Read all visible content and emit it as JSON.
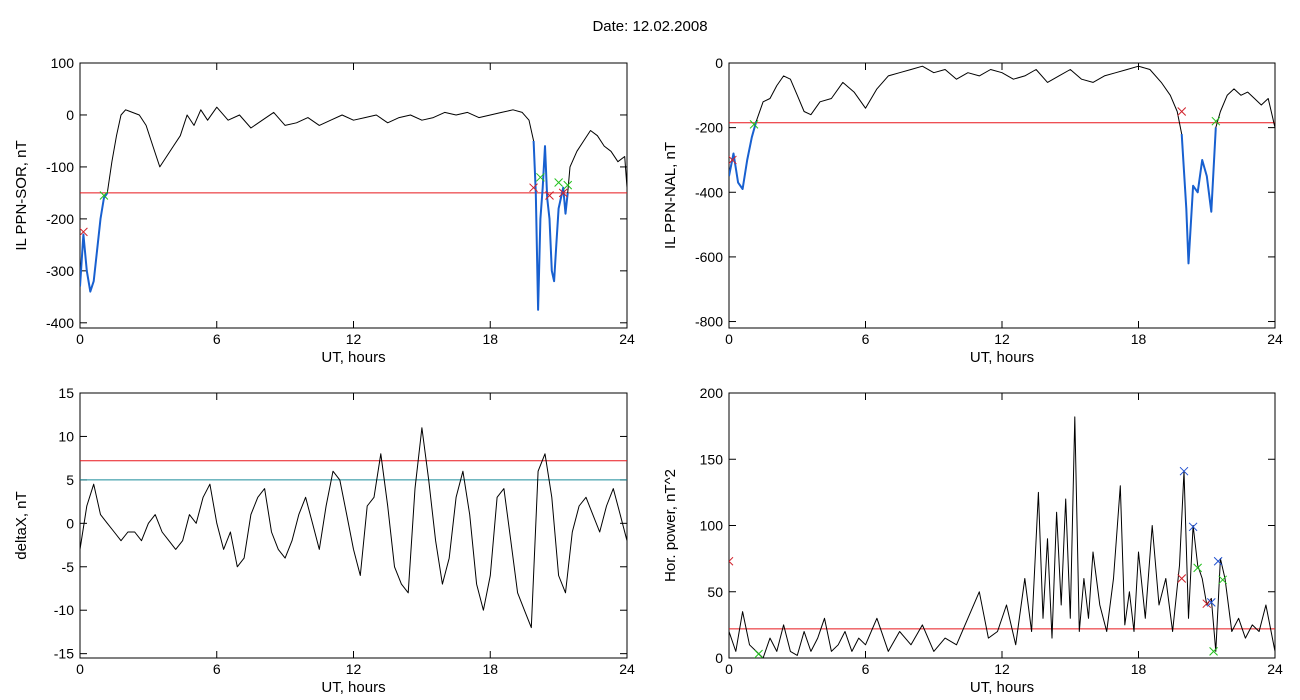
{
  "figure": {
    "title_label": "Date:",
    "title_value": "12.02.2008",
    "title_text": "Date:  12.02.2008"
  },
  "colors": {
    "signal": "#000000",
    "threshold_red": "#e8161b",
    "threshold_cyan": "#1a8c9a",
    "highlight_blue": "#1860d0",
    "marker_red": "#d0202a",
    "marker_green": "#22c01c",
    "marker_blue": "#2050d0"
  },
  "chart_data": [
    {
      "id": "sor",
      "type": "line",
      "title": "",
      "xlabel": "UT, hours",
      "ylabel": "IL PPN-SOR, nT",
      "xlim": [
        0,
        24
      ],
      "ylim": [
        -410,
        100
      ],
      "xticks": [
        0,
        6,
        12,
        18,
        24
      ],
      "yticks": [
        100,
        0,
        -100,
        -200,
        -300,
        -400
      ],
      "threshold": -150,
      "series": [
        {
          "role": "signal",
          "x": [
            0,
            0.15,
            0.3,
            0.45,
            0.6,
            0.75,
            0.9,
            1.05,
            1.2,
            1.4,
            1.6,
            1.8,
            2.0,
            2.3,
            2.6,
            2.9,
            3.2,
            3.5,
            3.8,
            4.1,
            4.4,
            4.7,
            5.0,
            5.3,
            5.6,
            6.0,
            6.5,
            7.0,
            7.5,
            8.0,
            8.5,
            9.0,
            9.5,
            10.0,
            10.5,
            11.0,
            11.5,
            12.0,
            12.5,
            13.0,
            13.5,
            14.0,
            14.5,
            15.0,
            15.5,
            16.0,
            16.5,
            17.0,
            17.5,
            18.0,
            18.5,
            19.0,
            19.4,
            19.7,
            19.9,
            20.0,
            20.1,
            20.2,
            20.3,
            20.4,
            20.5,
            20.6,
            20.7,
            20.8,
            20.9,
            21.0,
            21.1,
            21.2,
            21.3,
            21.4,
            21.5,
            21.8,
            22.1,
            22.4,
            22.7,
            23.0,
            23.3,
            23.6,
            23.9,
            24.0
          ],
          "y": [
            -330,
            -230,
            -300,
            -340,
            -320,
            -260,
            -200,
            -160,
            -150,
            -90,
            -40,
            0,
            10,
            5,
            0,
            -20,
            -60,
            -100,
            -80,
            -60,
            -40,
            0,
            -20,
            10,
            -10,
            15,
            -10,
            0,
            -25,
            -10,
            5,
            -20,
            -15,
            -5,
            -20,
            -10,
            0,
            -10,
            -5,
            0,
            -15,
            -5,
            0,
            -10,
            -5,
            5,
            0,
            5,
            -5,
            0,
            5,
            10,
            5,
            -10,
            -50,
            -150,
            -375,
            -200,
            -140,
            -60,
            -160,
            -200,
            -300,
            -320,
            -250,
            -180,
            -160,
            -140,
            -190,
            -150,
            -100,
            -70,
            -50,
            -30,
            -40,
            -60,
            -70,
            -90,
            -80,
            -140
          ]
        },
        {
          "role": "highlight",
          "x": [
            0,
            0.15,
            0.3,
            0.45,
            0.6,
            0.75,
            0.9,
            1.05,
            1.2
          ],
          "y": [
            -330,
            -230,
            -300,
            -340,
            -320,
            -260,
            -200,
            -160,
            -150
          ]
        },
        {
          "role": "highlight",
          "x": [
            19.9,
            20.0,
            20.1,
            20.2,
            20.3,
            20.4,
            20.5,
            20.6,
            20.7,
            20.8,
            20.9,
            21.0,
            21.1,
            21.2,
            21.3,
            21.4
          ],
          "y": [
            -50,
            -150,
            -375,
            -200,
            -140,
            -60,
            -160,
            -200,
            -300,
            -320,
            -250,
            -180,
            -160,
            -140,
            -190,
            -150
          ]
        }
      ],
      "markers": [
        {
          "x": 0.15,
          "y": -225,
          "color": "red"
        },
        {
          "x": 1.05,
          "y": -155,
          "color": "green"
        },
        {
          "x": 19.9,
          "y": -140,
          "color": "red"
        },
        {
          "x": 20.2,
          "y": -120,
          "color": "green"
        },
        {
          "x": 20.6,
          "y": -155,
          "color": "red"
        },
        {
          "x": 21.0,
          "y": -130,
          "color": "green"
        },
        {
          "x": 21.2,
          "y": -150,
          "color": "red"
        },
        {
          "x": 21.4,
          "y": -135,
          "color": "green"
        }
      ]
    },
    {
      "id": "nal",
      "type": "line",
      "title": "",
      "xlabel": "UT, hours",
      "ylabel": "IL PPN-NAL, nT",
      "xlim": [
        0,
        24
      ],
      "ylim": [
        -820,
        0
      ],
      "xticks": [
        0,
        6,
        12,
        18,
        24
      ],
      "yticks": [
        0,
        -200,
        -400,
        -600,
        -800
      ],
      "threshold": -185,
      "series": [
        {
          "role": "signal",
          "x": [
            0,
            0.2,
            0.4,
            0.6,
            0.8,
            1.0,
            1.2,
            1.5,
            1.8,
            2.1,
            2.4,
            2.7,
            3.0,
            3.3,
            3.6,
            4.0,
            4.5,
            5.0,
            5.5,
            6.0,
            6.5,
            7.0,
            7.5,
            8.0,
            8.5,
            9.0,
            9.5,
            10.0,
            10.5,
            11.0,
            11.5,
            12.0,
            12.5,
            13.0,
            13.5,
            14.0,
            14.5,
            15.0,
            15.5,
            16.0,
            16.5,
            17.0,
            17.5,
            18.0,
            18.5,
            19.0,
            19.4,
            19.7,
            19.9,
            20.1,
            20.2,
            20.3,
            20.4,
            20.6,
            20.8,
            21.0,
            21.2,
            21.4,
            21.6,
            21.9,
            22.2,
            22.5,
            22.8,
            23.1,
            23.4,
            23.7,
            24.0
          ],
          "y": [
            -350,
            -280,
            -370,
            -390,
            -300,
            -230,
            -180,
            -120,
            -110,
            -70,
            -40,
            -50,
            -100,
            -150,
            -160,
            -120,
            -110,
            -60,
            -90,
            -140,
            -80,
            -40,
            -30,
            -20,
            -10,
            -30,
            -20,
            -50,
            -30,
            -40,
            -20,
            -30,
            -50,
            -40,
            -20,
            -60,
            -40,
            -20,
            -50,
            -60,
            -40,
            -30,
            -20,
            -10,
            -20,
            -60,
            -100,
            -150,
            -220,
            -450,
            -620,
            -500,
            -380,
            -400,
            -300,
            -350,
            -460,
            -200,
            -150,
            -100,
            -80,
            -100,
            -90,
            -110,
            -130,
            -110,
            -200
          ]
        },
        {
          "role": "highlight",
          "x": [
            0,
            0.2,
            0.4,
            0.6,
            0.8,
            1.0,
            1.2
          ],
          "y": [
            -350,
            -280,
            -370,
            -390,
            -300,
            -230,
            -180
          ]
        },
        {
          "role": "highlight",
          "x": [
            19.9,
            20.1,
            20.2,
            20.3,
            20.4,
            20.6,
            20.8,
            21.0,
            21.2,
            21.4
          ],
          "y": [
            -220,
            -450,
            -620,
            -500,
            -380,
            -400,
            -300,
            -350,
            -460,
            -200
          ]
        }
      ],
      "markers": [
        {
          "x": 0.15,
          "y": -300,
          "color": "red"
        },
        {
          "x": 1.1,
          "y": -190,
          "color": "green"
        },
        {
          "x": 19.9,
          "y": -150,
          "color": "red"
        },
        {
          "x": 21.4,
          "y": -180,
          "color": "green"
        }
      ]
    },
    {
      "id": "deltax",
      "type": "line",
      "title": "",
      "xlabel": "UT, hours",
      "ylabel": "deltaX, nT",
      "xlim": [
        0,
        24
      ],
      "ylim": [
        -15.5,
        15
      ],
      "xticks": [
        0,
        6,
        12,
        18,
        24
      ],
      "yticks": [
        15,
        10,
        5,
        0,
        -5,
        -10,
        -15
      ],
      "thresholds": [
        7.2,
        5.0
      ],
      "series": [
        {
          "role": "signal",
          "x": [
            0,
            0.3,
            0.6,
            0.9,
            1.2,
            1.5,
            1.8,
            2.1,
            2.4,
            2.7,
            3.0,
            3.3,
            3.6,
            3.9,
            4.2,
            4.5,
            4.8,
            5.1,
            5.4,
            5.7,
            6.0,
            6.3,
            6.6,
            6.9,
            7.2,
            7.5,
            7.8,
            8.1,
            8.4,
            8.7,
            9.0,
            9.3,
            9.6,
            9.9,
            10.2,
            10.5,
            10.8,
            11.1,
            11.4,
            11.7,
            12.0,
            12.3,
            12.6,
            12.9,
            13.2,
            13.5,
            13.8,
            14.1,
            14.4,
            14.7,
            15.0,
            15.3,
            15.6,
            15.9,
            16.2,
            16.5,
            16.8,
            17.1,
            17.4,
            17.7,
            18.0,
            18.3,
            18.6,
            18.9,
            19.2,
            19.5,
            19.8,
            20.1,
            20.4,
            20.7,
            21.0,
            21.3,
            21.6,
            21.9,
            22.2,
            22.5,
            22.8,
            23.1,
            23.4,
            23.7,
            24.0
          ],
          "y": [
            -3,
            2,
            4.5,
            1,
            0,
            -1,
            -2,
            -1,
            -1,
            -2,
            0,
            1,
            -1,
            -2,
            -3,
            -2,
            1,
            0,
            3,
            4.5,
            0,
            -3,
            -1,
            -5,
            -4,
            1,
            3,
            4,
            -1,
            -3,
            -4,
            -2,
            1,
            3,
            0,
            -3,
            2,
            6,
            5,
            1,
            -3,
            -6,
            2,
            3,
            8,
            2,
            -5,
            -7,
            -8,
            4,
            11,
            5,
            -2,
            -7,
            -4,
            3,
            6,
            1,
            -7,
            -10,
            -6,
            3,
            4,
            -2,
            -8,
            -10,
            -12,
            6,
            8,
            3,
            -6,
            -8,
            -1,
            2,
            3,
            1,
            -1,
            2,
            4,
            1,
            -2
          ]
        }
      ],
      "markers": []
    },
    {
      "id": "power",
      "type": "line",
      "title": "",
      "xlabel": "UT, hours",
      "ylabel": "Hor. power, nT^2",
      "xlim": [
        0,
        24
      ],
      "ylim": [
        0,
        200
      ],
      "xticks": [
        0,
        6,
        12,
        18,
        24
      ],
      "yticks": [
        200,
        150,
        100,
        50,
        0
      ],
      "threshold": 22,
      "series": [
        {
          "role": "signal",
          "x": [
            0,
            0.3,
            0.6,
            0.9,
            1.2,
            1.5,
            1.8,
            2.1,
            2.4,
            2.7,
            3.0,
            3.3,
            3.6,
            3.9,
            4.2,
            4.5,
            4.8,
            5.1,
            5.4,
            5.7,
            6.0,
            6.5,
            7.0,
            7.5,
            8.0,
            8.5,
            9.0,
            9.5,
            10.0,
            10.5,
            11.0,
            11.4,
            11.8,
            12.2,
            12.6,
            13.0,
            13.3,
            13.6,
            13.8,
            14.0,
            14.2,
            14.4,
            14.6,
            14.8,
            15.0,
            15.2,
            15.4,
            15.6,
            15.8,
            16.0,
            16.3,
            16.6,
            16.9,
            17.2,
            17.4,
            17.6,
            17.8,
            18.0,
            18.3,
            18.6,
            18.9,
            19.2,
            19.5,
            19.8,
            20.0,
            20.2,
            20.4,
            20.6,
            20.8,
            21.0,
            21.2,
            21.4,
            21.6,
            21.8,
            22.1,
            22.4,
            22.7,
            23.0,
            23.3,
            23.6,
            24.0
          ],
          "y": [
            20,
            5,
            35,
            10,
            5,
            0,
            15,
            5,
            25,
            5,
            2,
            20,
            5,
            15,
            30,
            5,
            10,
            20,
            5,
            15,
            10,
            30,
            5,
            20,
            10,
            25,
            5,
            15,
            10,
            30,
            50,
            15,
            20,
            40,
            10,
            60,
            20,
            125,
            30,
            90,
            15,
            110,
            40,
            120,
            30,
            182,
            20,
            60,
            30,
            80,
            40,
            20,
            60,
            130,
            25,
            50,
            20,
            80,
            30,
            100,
            40,
            60,
            20,
            70,
            141,
            30,
            100,
            70,
            60,
            40,
            45,
            5,
            75,
            60,
            20,
            30,
            15,
            25,
            20,
            40,
            5
          ]
        }
      ],
      "markers": [
        {
          "x": 0.0,
          "y": 73,
          "color": "red"
        },
        {
          "x": 1.3,
          "y": 3,
          "color": "green"
        },
        {
          "x": 19.9,
          "y": 60,
          "color": "red"
        },
        {
          "x": 20.0,
          "y": 141,
          "color": "blue"
        },
        {
          "x": 20.4,
          "y": 99,
          "color": "blue"
        },
        {
          "x": 20.6,
          "y": 68,
          "color": "green"
        },
        {
          "x": 21.0,
          "y": 41,
          "color": "red"
        },
        {
          "x": 21.2,
          "y": 42,
          "color": "blue"
        },
        {
          "x": 21.3,
          "y": 5,
          "color": "green"
        },
        {
          "x": 21.5,
          "y": 73,
          "color": "blue"
        },
        {
          "x": 21.7,
          "y": 59,
          "color": "green"
        }
      ]
    }
  ]
}
